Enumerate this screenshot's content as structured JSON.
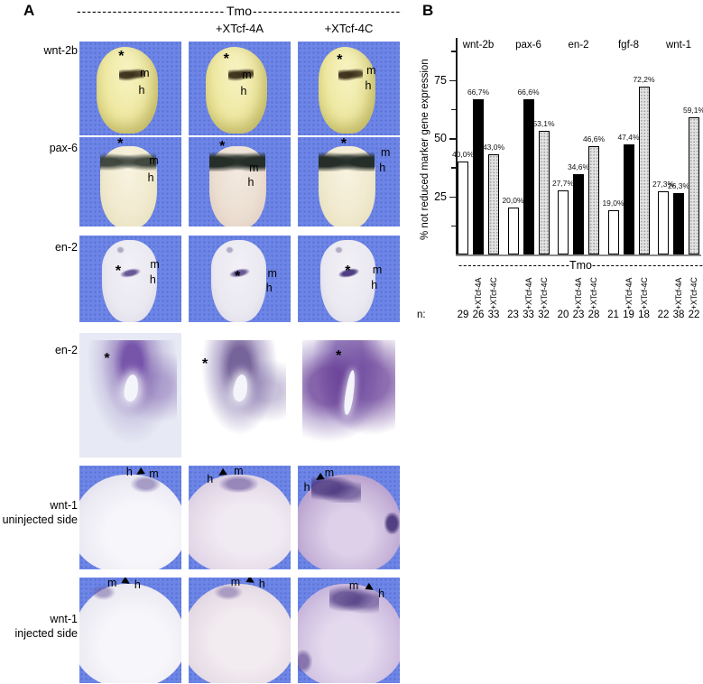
{
  "colors": {
    "tile_background_blue": "#6d85e6",
    "bar_white": "#ffffff",
    "bar_black": "#000000",
    "bar_gray": "#e2e2e2",
    "stain_purple": "#6a4aa0",
    "embryo_yellow": "#efe9a4"
  },
  "panelA": {
    "letter": "A",
    "header": {
      "dashes": "------------------------------------------------",
      "tmo": "Tmo"
    },
    "col_headers": [
      "+XTcf-4A",
      "+XTcf-4C"
    ],
    "rows": [
      {
        "label": "wnt-2b",
        "tiles": [
          {
            "ann": [
              {
                "t": "*",
                "x": 41,
                "y": 16,
                "k": "star"
              },
              {
                "t": "m",
                "x": 64,
                "y": 34,
                "k": "txt"
              },
              {
                "t": "h",
                "x": 61,
                "y": 52,
                "k": "txt"
              }
            ]
          },
          {
            "ann": [
              {
                "t": "*",
                "x": 37,
                "y": 19,
                "k": "star"
              },
              {
                "t": "m",
                "x": 57,
                "y": 36,
                "k": "txt"
              },
              {
                "t": "h",
                "x": 54,
                "y": 53,
                "k": "txt"
              }
            ]
          },
          {
            "ann": [
              {
                "t": "*",
                "x": 41,
                "y": 20,
                "k": "star"
              },
              {
                "t": "m",
                "x": 72,
                "y": 31,
                "k": "txt"
              },
              {
                "t": "h",
                "x": 69,
                "y": 47,
                "k": "txt"
              }
            ]
          }
        ]
      },
      {
        "label": "pax-6",
        "tiles": [
          {
            "ann": [
              {
                "t": "*",
                "x": 40,
                "y": 8,
                "k": "star"
              },
              {
                "t": "m",
                "x": 73,
                "y": 26,
                "k": "txt"
              },
              {
                "t": "h",
                "x": 70,
                "y": 45,
                "k": "txt"
              }
            ]
          },
          {
            "ann": [
              {
                "t": "*",
                "x": 33,
                "y": 11,
                "k": "star"
              },
              {
                "t": "m",
                "x": 64,
                "y": 34,
                "k": "txt"
              },
              {
                "t": "h",
                "x": 61,
                "y": 51,
                "k": "txt"
              }
            ]
          },
          {
            "ann": [
              {
                "t": "*",
                "x": 45,
                "y": 8,
                "k": "star"
              },
              {
                "t": "m",
                "x": 86,
                "y": 17,
                "k": "txt"
              },
              {
                "t": "h",
                "x": 83,
                "y": 34,
                "k": "txt"
              }
            ]
          }
        ]
      },
      {
        "label": "en-2",
        "tiles": [
          {
            "ann": [
              {
                "t": "*",
                "x": 38,
                "y": 42,
                "k": "star"
              },
              {
                "t": "m",
                "x": 74,
                "y": 33,
                "k": "txt"
              },
              {
                "t": "h",
                "x": 72,
                "y": 51,
                "k": "txt"
              }
            ]
          },
          {
            "ann": [
              {
                "t": "*",
                "x": 48,
                "y": 48,
                "k": "star"
              },
              {
                "t": "m",
                "x": 82,
                "y": 44,
                "k": "txt"
              },
              {
                "t": "h",
                "x": 79,
                "y": 60,
                "k": "txt"
              }
            ]
          },
          {
            "ann": [
              {
                "t": "*",
                "x": 49,
                "y": 42,
                "k": "star"
              },
              {
                "t": "m",
                "x": 78,
                "y": 40,
                "k": "txt"
              },
              {
                "t": "h",
                "x": 75,
                "y": 57,
                "k": "txt"
              }
            ]
          }
        ]
      },
      {
        "label": "en-2",
        "tiles": [
          {
            "ann": [
              {
                "t": "*",
                "x": 27,
                "y": 21,
                "k": "star"
              }
            ]
          },
          {
            "ann": [
              {
                "t": "*",
                "x": 16,
                "y": 25,
                "k": "star"
              }
            ]
          },
          {
            "ann": [
              {
                "t": "*",
                "x": 40,
                "y": 19,
                "k": "star"
              }
            ]
          }
        ]
      },
      {
        "label": "wnt-1",
        "label2": "uninjected side",
        "tiles": [
          {
            "ann": [
              {
                "t": "h",
                "x": 49,
                "y": 6,
                "k": "txt"
              },
              {
                "t": "◀",
                "x": 59,
                "y": 7,
                "k": "arrL"
              },
              {
                "t": "m",
                "x": 73,
                "y": 8,
                "k": "txt"
              }
            ]
          },
          {
            "ann": [
              {
                "t": "h",
                "x": 21,
                "y": 13,
                "k": "txt"
              },
              {
                "t": "◀",
                "x": 33,
                "y": 8,
                "k": "arrL"
              },
              {
                "t": "m",
                "x": 49,
                "y": 5,
                "k": "txt"
              }
            ]
          },
          {
            "ann": [
              {
                "t": "h",
                "x": 9,
                "y": 21,
                "k": "txt"
              },
              {
                "t": "◀",
                "x": 21,
                "y": 12,
                "k": "arrL"
              },
              {
                "t": "m",
                "x": 31,
                "y": 7,
                "k": "txt"
              }
            ]
          }
        ]
      },
      {
        "label": "wnt-1",
        "label2": "injected side",
        "tiles": [
          {
            "ann": [
              {
                "t": "m",
                "x": 32,
                "y": 5,
                "k": "txt"
              },
              {
                "t": "▶",
                "x": 46,
                "y": 4,
                "k": "arrR"
              },
              {
                "t": "h",
                "x": 57,
                "y": 7,
                "k": "txt"
              }
            ]
          },
          {
            "ann": [
              {
                "t": "m",
                "x": 46,
                "y": 4,
                "k": "txt"
              },
              {
                "t": "▶",
                "x": 61,
                "y": 3,
                "k": "arrR"
              },
              {
                "t": "h",
                "x": 72,
                "y": 6,
                "k": "txt"
              }
            ]
          },
          {
            "ann": [
              {
                "t": "m",
                "x": 55,
                "y": 8,
                "k": "txt"
              },
              {
                "t": "▶",
                "x": 71,
                "y": 10,
                "k": "arrR"
              },
              {
                "t": "h",
                "x": 82,
                "y": 15,
                "k": "txt"
              }
            ]
          }
        ]
      }
    ]
  },
  "panelB": {
    "letter": "B",
    "n_label": "n:",
    "footer": {
      "dashes": "------------------------------------------------",
      "tmo": "Tmo"
    }
  },
  "chart_data": {
    "type": "bar",
    "title": "",
    "xlabel": "",
    "ylabel": "% not reduced marker gene expression",
    "ylim": [
      0,
      100
    ],
    "yticks": [
      25,
      50,
      75
    ],
    "grid": false,
    "legend_position": "none",
    "categories": [
      "wnt-2b",
      "pax-6",
      "en-2",
      "fgf-8",
      "wnt-1"
    ],
    "series": [
      {
        "name": "Tmo",
        "fill": "white",
        "values": [
          40.0,
          20.0,
          27.7,
          19.0,
          27.3
        ],
        "labels": [
          "40,0%",
          "20,0%",
          "27,7%",
          "19,0%",
          "27,3%"
        ],
        "n": [
          29,
          23,
          20,
          21,
          22
        ]
      },
      {
        "name": "Tmo +XTcf-4A",
        "fill": "black",
        "values": [
          66.7,
          66.6,
          34.6,
          47.4,
          26.3
        ],
        "labels": [
          "66,7%",
          "66,6%",
          "34,6%",
          "47,4%",
          "26,3%"
        ],
        "n": [
          26,
          33,
          23,
          19,
          38
        ]
      },
      {
        "name": "Tmo +XTcf-4C",
        "fill": "gray",
        "values": [
          43.0,
          53.1,
          46.6,
          72.2,
          59.1
        ],
        "labels": [
          "43,0%",
          "53,1%",
          "46,6%",
          "72,2%",
          "59,1%"
        ],
        "n": [
          33,
          32,
          28,
          18,
          22
        ]
      }
    ],
    "x_sub_labels": [
      "+XTcf-4A",
      "+XTcf-4C"
    ],
    "x_group_label": "Tmo"
  }
}
